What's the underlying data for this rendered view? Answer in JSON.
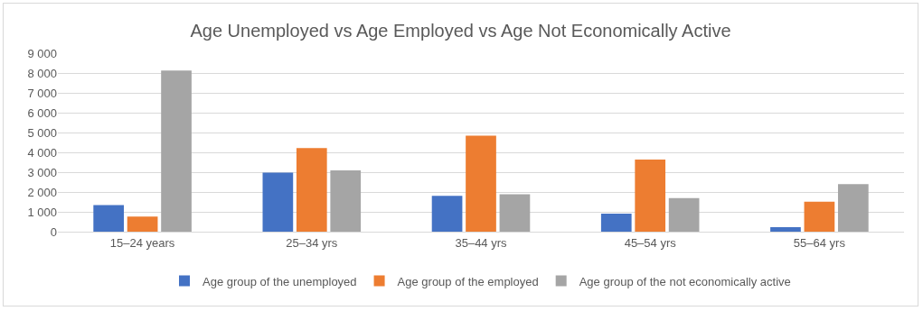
{
  "chart_data": {
    "type": "bar",
    "title": "Age Unemployed vs Age Employed vs Age Not Economically Active",
    "categories": [
      "15–24 years",
      "25–34 yrs",
      "35–44 yrs",
      "45–54 yrs",
      "55–64 yrs"
    ],
    "series": [
      {
        "name": "Age group of the unemployed",
        "color": "#4472c4",
        "values": [
          1340,
          2980,
          1810,
          910,
          230
        ]
      },
      {
        "name": "Age group of the employed",
        "color": "#ed7d31",
        "values": [
          760,
          4220,
          4840,
          3640,
          1510
        ]
      },
      {
        "name": "Age group of the not economically active",
        "color": "#a5a5a5",
        "values": [
          8130,
          3090,
          1890,
          1690,
          2400
        ]
      }
    ],
    "ylim": [
      0,
      9000
    ],
    "yticks": [
      0,
      {
        "value": 1000,
        "label": "1 000"
      },
      {
        "value": 2000,
        "label": "2 000"
      },
      {
        "value": 3000,
        "label": "3 000"
      },
      {
        "value": 4000,
        "label": "4 000"
      },
      {
        "value": 5000,
        "label": "5 000"
      },
      {
        "value": 6000,
        "label": "6 000"
      },
      {
        "value": 7000,
        "label": "7 000"
      },
      {
        "value": 8000,
        "label": "8 000"
      },
      {
        "value": 9000,
        "label": "9 000"
      }
    ],
    "grid": "y",
    "legend": "bottom"
  }
}
